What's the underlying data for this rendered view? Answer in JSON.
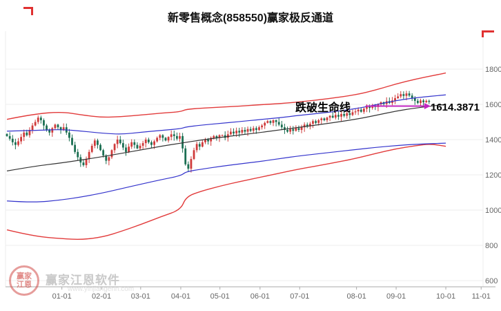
{
  "window": {
    "title": "新零售概念(858550)赢家极反通道"
  },
  "annotation": {
    "text": "跌破生命线",
    "price_label": "1614.3871"
  },
  "watermark": {
    "brand": "赢家江恩软件",
    "url": "www.yinjiangenn.com",
    "seal_top": "赢家",
    "seal_bottom": "江恩"
  },
  "colors": {
    "up": "#cf3a3a",
    "down": "#1b6f52",
    "channel_red": "#e23b3b",
    "channel_blue": "#3333cc",
    "lifeline": "#333333",
    "annotation": "#c226c2",
    "grid": "#ececec",
    "axis": "#aaaaaa",
    "tick_text": "#666666",
    "mark_red": "#e03030",
    "title_text": "#111111"
  },
  "chart_data": {
    "type": "candlestick",
    "title": "新零售概念(858550)赢家极反通道",
    "xlabel": "",
    "ylabel": "",
    "ylim": [
      565,
      2015
    ],
    "y_ticks": [
      600,
      800,
      1000,
      1200,
      1400,
      1600,
      1800
    ],
    "x_ticks": [
      "01-01",
      "02-01",
      "03-01",
      "04-01",
      "05-01",
      "06-01",
      "07-01",
      "08-01",
      "09-01",
      "10-01",
      "11-01"
    ],
    "x_tick_pos": [
      0.118,
      0.201,
      0.283,
      0.367,
      0.449,
      0.533,
      0.616,
      0.735,
      0.818,
      0.922,
      0.996
    ],
    "candle_x_range": [
      0.003,
      0.887
    ],
    "candles": {
      "start_open": 1432,
      "closes": [
        1420,
        1405,
        1385,
        1370,
        1390,
        1415,
        1440,
        1425,
        1455,
        1480,
        1500,
        1525,
        1510,
        1480,
        1455,
        1440,
        1465,
        1485,
        1470,
        1455,
        1470,
        1440,
        1410,
        1370,
        1330,
        1300,
        1270,
        1255,
        1290,
        1330,
        1365,
        1395,
        1370,
        1340,
        1310,
        1280,
        1300,
        1340,
        1375,
        1400,
        1380,
        1355,
        1330,
        1360,
        1385,
        1370,
        1350,
        1365,
        1380,
        1400,
        1385,
        1370,
        1390,
        1410,
        1425,
        1410,
        1395,
        1415,
        1430,
        1420,
        1405,
        1420,
        1350,
        1260,
        1235,
        1290,
        1340,
        1375,
        1360,
        1385,
        1400,
        1390,
        1410,
        1420,
        1410,
        1425,
        1425,
        1410,
        1430,
        1445,
        1435,
        1450,
        1440,
        1455,
        1445,
        1460,
        1450,
        1465,
        1455,
        1470,
        1480,
        1495,
        1505,
        1495,
        1510,
        1500,
        1485,
        1470,
        1455,
        1445,
        1460,
        1450,
        1465,
        1455,
        1470,
        1485,
        1475,
        1490,
        1505,
        1495,
        1510,
        1520,
        1510,
        1525,
        1535,
        1525,
        1540,
        1530,
        1545,
        1535,
        1550,
        1540,
        1555,
        1560,
        1570,
        1558,
        1575,
        1590,
        1580,
        1595,
        1585,
        1600,
        1612,
        1602,
        1618,
        1608,
        1622,
        1635,
        1645,
        1658,
        1648,
        1662,
        1650,
        1635,
        1620,
        1608,
        1622,
        1612,
        1620,
        1614.39
      ]
    },
    "bands": {
      "upper_red": [
        [
          0.003,
          1515
        ],
        [
          0.058,
          1545
        ],
        [
          0.118,
          1558
        ],
        [
          0.16,
          1540
        ],
        [
          0.2,
          1526
        ],
        [
          0.243,
          1530
        ],
        [
          0.285,
          1540
        ],
        [
          0.325,
          1550
        ],
        [
          0.367,
          1558
        ],
        [
          0.378,
          1572
        ],
        [
          0.41,
          1578
        ],
        [
          0.449,
          1584
        ],
        [
          0.49,
          1590
        ],
        [
          0.533,
          1598
        ],
        [
          0.574,
          1604
        ],
        [
          0.616,
          1614
        ],
        [
          0.676,
          1632
        ],
        [
          0.735,
          1655
        ],
        [
          0.776,
          1682
        ],
        [
          0.818,
          1716
        ],
        [
          0.86,
          1744
        ],
        [
          0.9,
          1766
        ],
        [
          0.922,
          1778
        ]
      ],
      "upper_blue": [
        [
          0.003,
          1448
        ],
        [
          0.06,
          1452
        ],
        [
          0.118,
          1458
        ],
        [
          0.16,
          1448
        ],
        [
          0.205,
          1436
        ],
        [
          0.243,
          1430
        ],
        [
          0.285,
          1442
        ],
        [
          0.325,
          1452
        ],
        [
          0.367,
          1462
        ],
        [
          0.378,
          1472
        ],
        [
          0.41,
          1482
        ],
        [
          0.449,
          1492
        ],
        [
          0.49,
          1502
        ],
        [
          0.533,
          1514
        ],
        [
          0.574,
          1524
        ],
        [
          0.616,
          1538
        ],
        [
          0.676,
          1554
        ],
        [
          0.735,
          1576
        ],
        [
          0.776,
          1598
        ],
        [
          0.818,
          1622
        ],
        [
          0.86,
          1638
        ],
        [
          0.922,
          1654
        ]
      ],
      "lifeline": [
        [
          0.003,
          1222
        ],
        [
          0.058,
          1248
        ],
        [
          0.118,
          1268
        ],
        [
          0.16,
          1285
        ],
        [
          0.2,
          1302
        ],
        [
          0.243,
          1322
        ],
        [
          0.285,
          1342
        ],
        [
          0.325,
          1362
        ],
        [
          0.367,
          1380
        ],
        [
          0.41,
          1398
        ],
        [
          0.449,
          1412
        ],
        [
          0.49,
          1426
        ],
        [
          0.533,
          1440
        ],
        [
          0.574,
          1455
        ],
        [
          0.616,
          1470
        ],
        [
          0.676,
          1492
        ],
        [
          0.735,
          1516
        ],
        [
          0.776,
          1538
        ],
        [
          0.818,
          1562
        ],
        [
          0.86,
          1580
        ],
        [
          0.922,
          1600
        ]
      ],
      "lower_blue": [
        [
          0.003,
          1052
        ],
        [
          0.058,
          1042
        ],
        [
          0.118,
          1058
        ],
        [
          0.16,
          1075
        ],
        [
          0.205,
          1098
        ],
        [
          0.243,
          1122
        ],
        [
          0.285,
          1148
        ],
        [
          0.325,
          1172
        ],
        [
          0.367,
          1195
        ],
        [
          0.378,
          1218
        ],
        [
          0.41,
          1232
        ],
        [
          0.449,
          1248
        ],
        [
          0.49,
          1262
        ],
        [
          0.533,
          1276
        ],
        [
          0.574,
          1292
        ],
        [
          0.616,
          1308
        ],
        [
          0.676,
          1326
        ],
        [
          0.735,
          1344
        ],
        [
          0.776,
          1356
        ],
        [
          0.818,
          1366
        ],
        [
          0.86,
          1374
        ],
        [
          0.922,
          1380
        ]
      ],
      "lower_red": [
        [
          0.003,
          888
        ],
        [
          0.058,
          852
        ],
        [
          0.118,
          838
        ],
        [
          0.16,
          832
        ],
        [
          0.205,
          848
        ],
        [
          0.243,
          880
        ],
        [
          0.285,
          920
        ],
        [
          0.325,
          962
        ],
        [
          0.367,
          1002
        ],
        [
          0.378,
          1076
        ],
        [
          0.41,
          1108
        ],
        [
          0.449,
          1136
        ],
        [
          0.49,
          1162
        ],
        [
          0.533,
          1186
        ],
        [
          0.574,
          1210
        ],
        [
          0.616,
          1234
        ],
        [
          0.676,
          1262
        ],
        [
          0.735,
          1294
        ],
        [
          0.776,
          1322
        ],
        [
          0.818,
          1348
        ],
        [
          0.86,
          1366
        ],
        [
          0.89,
          1376
        ],
        [
          0.922,
          1362
        ]
      ]
    },
    "annotation": {
      "label": "跌破生命线",
      "line_value": 1590,
      "line_x_from": 0.754,
      "line_x_to": 0.877,
      "last_price": 1614.3871
    }
  }
}
